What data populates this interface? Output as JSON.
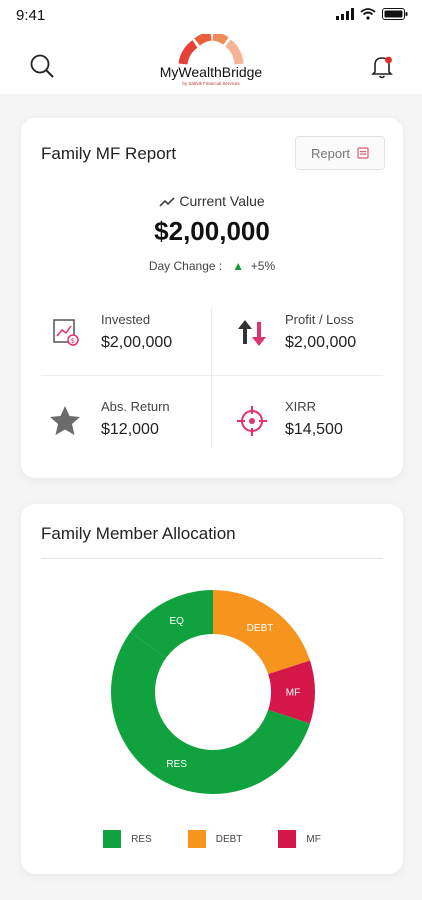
{
  "status_bar": {
    "time": "9:41"
  },
  "header": {
    "brand": "MyWealthBridge",
    "brand_sub": "by Sattvik Financial Services",
    "search_icon": "search-icon",
    "notification_icon": "bell-icon"
  },
  "report_card": {
    "title": "Family MF Report",
    "report_button_label": "Report",
    "current_value_label": "Current Value",
    "current_value": "$2,00,000",
    "day_change_label": "Day Change :",
    "day_change_value": "+5%",
    "stats": [
      {
        "label": "Invested",
        "value": "$2,00,000",
        "icon": "invested-icon"
      },
      {
        "label": "Profit / Loss",
        "value": "$2,00,000",
        "icon": "profit-loss-icon"
      },
      {
        "label": "Abs. Return",
        "value": "$12,000",
        "icon": "star-icon"
      },
      {
        "label": "XIRR",
        "value": "$14,500",
        "icon": "target-icon"
      }
    ]
  },
  "allocation_card": {
    "title": "Family Member Allocation",
    "chart_data": {
      "type": "pie",
      "categories": [
        "RES",
        "DEBT",
        "MF",
        "EQ"
      ],
      "values": [
        55,
        20,
        10,
        15
      ],
      "legend": [
        "RES",
        "DEBT",
        "MF"
      ],
      "legend_position": "bottom",
      "colors": {
        "RES": "#10a23f",
        "EQ": "#10a23f",
        "DEBT": "#f7941d",
        "MF": "#d6174a"
      }
    }
  },
  "colors": {
    "green": "#10a23f",
    "orange": "#f7941d",
    "crimson": "#d6174a",
    "accent_red": "#e5413b"
  }
}
